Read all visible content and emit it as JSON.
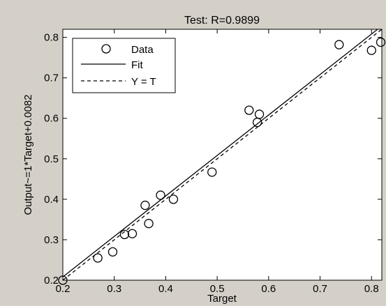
{
  "chart_data": {
    "type": "scatter",
    "title": "Test: R=0.9899",
    "xlabel": "Target",
    "ylabel": "Output~=1*Target+0.0082",
    "xlim": [
      0.2,
      0.82
    ],
    "ylim": [
      0.2,
      0.82
    ],
    "xticks": [
      "0.2",
      "0.3",
      "0.4",
      "0.5",
      "0.6",
      "0.7",
      "0.8"
    ],
    "yticks": [
      "0.2",
      "0.3",
      "0.4",
      "0.5",
      "0.6",
      "0.7",
      "0.8"
    ],
    "grid": false,
    "legend_position": "top-left",
    "series": [
      {
        "name": "Data",
        "kind": "markers",
        "marker": "circle",
        "color": "#000000",
        "points": [
          {
            "x": 0.2,
            "y": 0.2
          },
          {
            "x": 0.268,
            "y": 0.255
          },
          {
            "x": 0.297,
            "y": 0.27
          },
          {
            "x": 0.32,
            "y": 0.313
          },
          {
            "x": 0.335,
            "y": 0.315
          },
          {
            "x": 0.36,
            "y": 0.385
          },
          {
            "x": 0.367,
            "y": 0.34
          },
          {
            "x": 0.39,
            "y": 0.41
          },
          {
            "x": 0.415,
            "y": 0.4
          },
          {
            "x": 0.49,
            "y": 0.467
          },
          {
            "x": 0.562,
            "y": 0.62
          },
          {
            "x": 0.578,
            "y": 0.59
          },
          {
            "x": 0.582,
            "y": 0.61
          },
          {
            "x": 0.737,
            "y": 0.782
          },
          {
            "x": 0.8,
            "y": 0.768
          },
          {
            "x": 0.818,
            "y": 0.788
          }
        ]
      },
      {
        "name": "Fit",
        "kind": "line",
        "style": "solid",
        "color": "#000000",
        "slope": 1,
        "intercept": 0.0082
      },
      {
        "name": "Y = T",
        "kind": "line",
        "style": "dashed",
        "color": "#000000",
        "slope": 1,
        "intercept": 0
      }
    ]
  }
}
